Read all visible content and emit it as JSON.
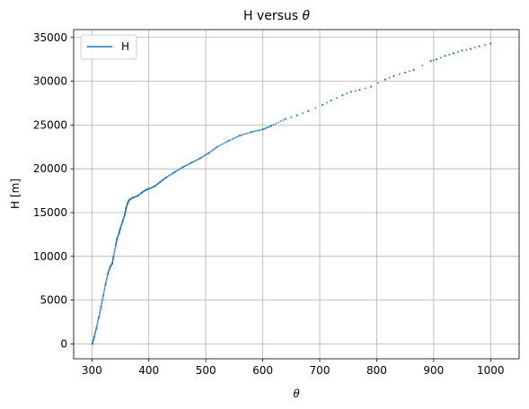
{
  "chart_data": {
    "type": "scatter",
    "title_prefix": "H versus ",
    "title_symbol": "θ",
    "xlabel": "θ",
    "ylabel": "H [m]",
    "xlim": [
      268,
      1050
    ],
    "ylim": [
      -1700,
      35900
    ],
    "xticks": [
      300,
      400,
      500,
      600,
      700,
      800,
      900,
      1000
    ],
    "yticks": [
      0,
      5000,
      10000,
      15000,
      20000,
      25000,
      30000,
      35000
    ],
    "grid": true,
    "legend": {
      "position": "top-left",
      "entries": [
        "H"
      ]
    },
    "color": "#1f77b4",
    "series": [
      {
        "name": "H",
        "x": [
          301,
          304,
          308,
          312,
          316,
          320,
          324,
          328,
          332,
          336,
          338,
          342,
          344,
          348,
          350,
          354,
          358,
          360,
          363,
          365,
          367,
          372,
          380,
          388,
          395,
          400,
          410,
          420,
          430,
          445,
          460,
          475,
          490,
          505,
          520,
          540,
          560,
          580,
          600,
          615,
          640,
          660,
          680,
          705,
          720,
          740,
          755,
          770,
          790,
          815,
          830,
          850,
          865,
          895,
          905,
          920,
          935,
          950,
          965,
          980,
          1000
        ],
        "y": [
          0,
          800,
          1800,
          3000,
          4200,
          5500,
          6800,
          8000,
          8800,
          9200,
          10000,
          11300,
          12000,
          12700,
          13200,
          14000,
          14800,
          15500,
          16100,
          16400,
          16500,
          16700,
          16900,
          17300,
          17600,
          17700,
          18000,
          18500,
          19000,
          19600,
          20200,
          20700,
          21200,
          21800,
          22500,
          23200,
          23800,
          24200,
          24500,
          24900,
          25700,
          26100,
          26600,
          27300,
          27800,
          28400,
          28800,
          29000,
          29400,
          30200,
          30600,
          31000,
          31300,
          32300,
          32500,
          32900,
          33200,
          33500,
          33700,
          34000,
          34300
        ]
      }
    ]
  }
}
